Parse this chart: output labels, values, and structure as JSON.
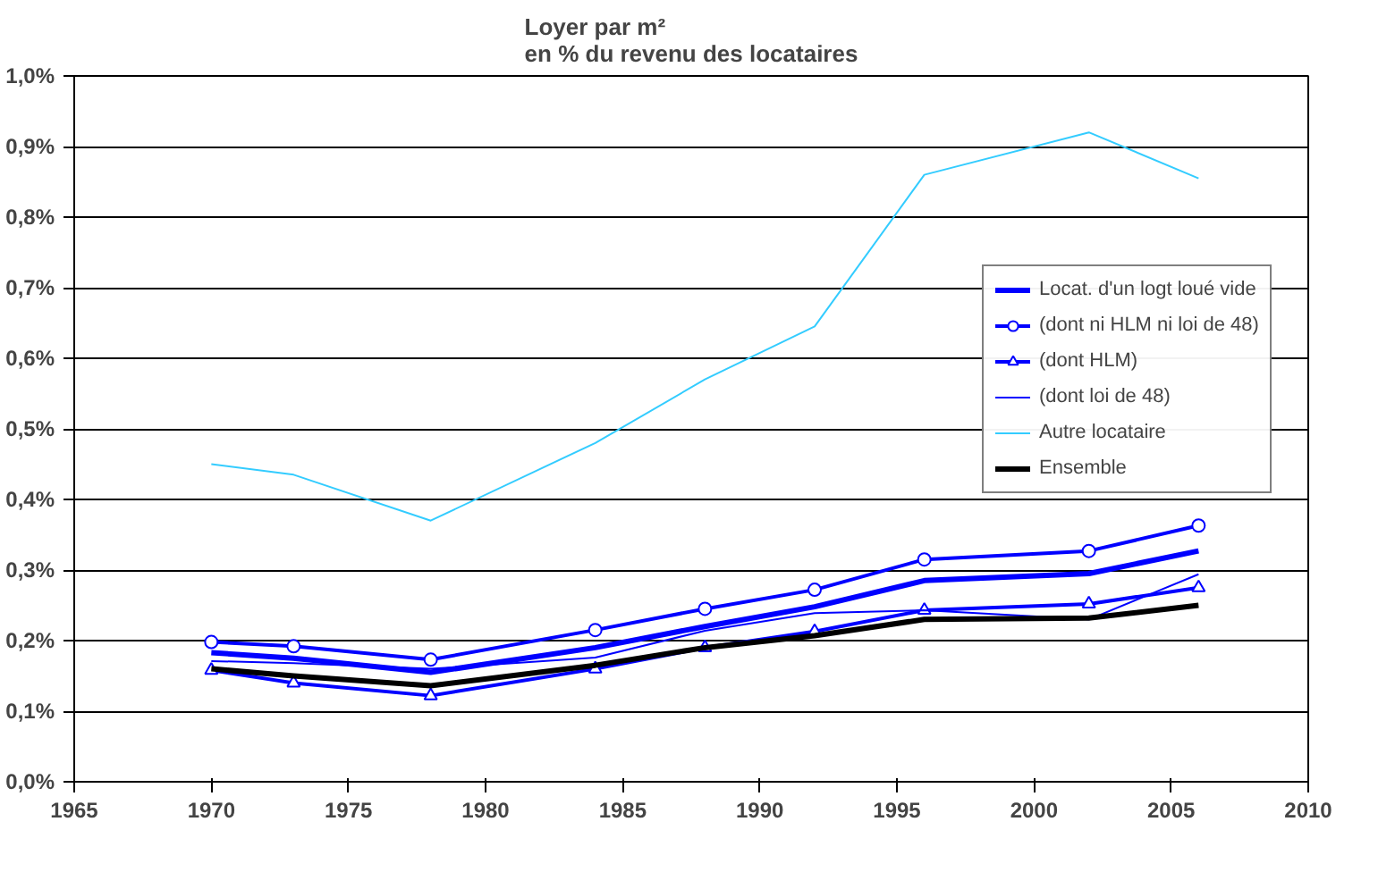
{
  "chart_data": {
    "type": "line",
    "title": "Loyer par m²\nen % du revenu des locataires",
    "x": [
      1970,
      1973,
      1978,
      1984,
      1988,
      1992,
      1996,
      2002,
      2006
    ],
    "series": [
      {
        "name": "Locat. d'un logt loué vide",
        "color": "#0000ff",
        "marker": "none",
        "values": [
          0.183,
          0.175,
          0.155,
          0.19,
          0.22,
          0.248,
          0.285,
          0.295,
          0.327
        ]
      },
      {
        "name": "(dont ni HLM ni loi de 48)",
        "color": "#0000ff",
        "marker": "circle",
        "values": [
          0.198,
          0.192,
          0.173,
          0.215,
          0.245,
          0.272,
          0.315,
          0.327,
          0.363
        ]
      },
      {
        "name": "(dont HLM)",
        "color": "#0000ff",
        "marker": "triangle",
        "values": [
          0.158,
          0.14,
          0.122,
          0.16,
          0.19,
          0.213,
          0.243,
          0.252,
          0.275
        ]
      },
      {
        "name": "(dont loi de 48)",
        "color": "#0000ff",
        "marker": "none",
        "values": [
          0.171,
          0.168,
          0.16,
          0.176,
          0.214,
          0.239,
          0.243,
          0.23,
          0.294
        ]
      },
      {
        "name": "Autre locataire",
        "color": "#33ccff",
        "marker": "none",
        "values": [
          0.45,
          0.435,
          0.37,
          0.48,
          0.57,
          0.645,
          0.86,
          0.92,
          0.855
        ]
      },
      {
        "name": "Ensemble",
        "color": "#000000",
        "marker": "none",
        "values": [
          0.16,
          0.15,
          0.136,
          0.165,
          0.19,
          0.207,
          0.23,
          0.232,
          0.25
        ]
      }
    ],
    "xlim": [
      1965,
      2010
    ],
    "xticks": [
      1965,
      1970,
      1975,
      1980,
      1985,
      1990,
      1995,
      2000,
      2005,
      2010
    ],
    "ylim": [
      0,
      1.0
    ],
    "yticks": [
      {
        "value": 0,
        "label": "0,0%"
      },
      {
        "value": 0.1,
        "label": "0,1%"
      },
      {
        "value": 0.2,
        "label": "0,2%"
      },
      {
        "value": 0.3,
        "label": "0,3%"
      },
      {
        "value": 0.4,
        "label": "0,4%"
      },
      {
        "value": 0.5,
        "label": "0,5%"
      },
      {
        "value": 0.6,
        "label": "0,6%"
      },
      {
        "value": 0.7,
        "label": "0,7%"
      },
      {
        "value": 0.8,
        "label": "0,8%"
      },
      {
        "value": 0.9,
        "label": "0,9%"
      },
      {
        "value": 1.0,
        "label": "1,0%"
      }
    ],
    "grid": "y",
    "legend": "right",
    "line_style": "solid"
  }
}
